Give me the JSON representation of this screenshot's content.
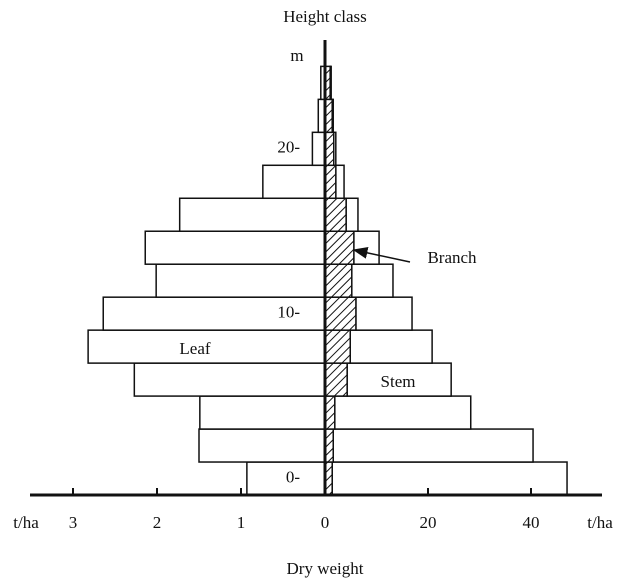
{
  "chart_data": {
    "type": "bar",
    "title": "Height class",
    "y_unit": "m",
    "x_label": "Dry weight",
    "x_unit": "t/ha",
    "categories": [
      "0-",
      null,
      null,
      null,
      null,
      "10-",
      null,
      null,
      null,
      null,
      "20-",
      null,
      null
    ],
    "ylim": [
      0,
      27.6
    ],
    "band_height": 2,
    "xlim": [
      0,
      3.5
    ],
    "xticks": [
      0,
      1,
      2,
      3
    ],
    "x2lim": [
      0,
      53.4
    ],
    "x2ticks": [
      20,
      40
    ],
    "series": [
      {
        "name": "Leaf",
        "side": "left",
        "color": "#ffffff",
        "values": [
          0.93,
          1.5,
          1.49,
          2.27,
          2.82,
          2.64,
          2.01,
          2.14,
          1.73,
          0.74,
          0.15,
          0.08,
          0.05
        ]
      },
      {
        "name": "Branch",
        "side": "right",
        "color": "hatch",
        "values": [
          1.4,
          1.6,
          1.9,
          4.3,
          4.9,
          6.0,
          5.2,
          5.6,
          4.1,
          2.1,
          1.7,
          1.4,
          1.0
        ]
      },
      {
        "name": "Stem",
        "side": "right",
        "color": "#ffffff",
        "values": [
          45.6,
          38.8,
          26.4,
          20.2,
          15.9,
          10.9,
          8.0,
          4.9,
          2.3,
          1.6,
          0.4,
          0.2,
          0.2
        ]
      }
    ]
  }
}
